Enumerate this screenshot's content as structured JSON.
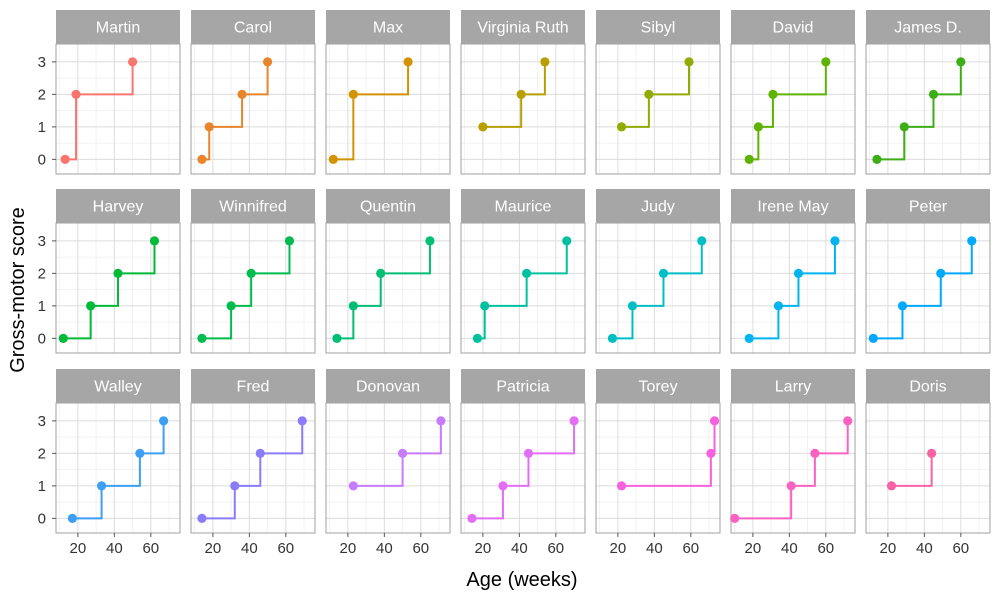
{
  "chart_data": {
    "type": "line",
    "subtype": "step-faceted",
    "xlabel": "Age (weeks)",
    "ylabel": "Gross-motor score",
    "xlim": [
      8,
      76
    ],
    "ylim": [
      -0.45,
      3.55
    ],
    "x_ticks": [
      20,
      40,
      60
    ],
    "y_ticks": [
      0,
      1,
      2,
      3
    ],
    "ncol": 7,
    "series": [
      {
        "name": "Martin",
        "color": "#f8766d",
        "points": [
          [
            13,
            0
          ],
          [
            19,
            2
          ],
          [
            50,
            3
          ]
        ]
      },
      {
        "name": "Carol",
        "color": "#e8852b",
        "points": [
          [
            14,
            0
          ],
          [
            18,
            1
          ],
          [
            36,
            2
          ],
          [
            50,
            3
          ]
        ]
      },
      {
        "name": "Max",
        "color": "#d39200",
        "points": [
          [
            12,
            0
          ],
          [
            23,
            2
          ],
          [
            53,
            3
          ]
        ]
      },
      {
        "name": "Virginia Ruth",
        "color": "#b79f00",
        "points": [
          [
            20,
            1
          ],
          [
            41,
            2
          ],
          [
            54,
            3
          ]
        ]
      },
      {
        "name": "Sibyl",
        "color": "#93aa00",
        "points": [
          [
            22,
            1
          ],
          [
            37,
            2
          ],
          [
            59,
            3
          ]
        ]
      },
      {
        "name": "David",
        "color": "#5eb300",
        "points": [
          [
            18,
            0
          ],
          [
            23,
            1
          ],
          [
            31,
            2
          ],
          [
            60,
            3
          ]
        ]
      },
      {
        "name": "James D.",
        "color": "#3dae16",
        "points": [
          [
            14,
            0
          ],
          [
            29,
            1
          ],
          [
            45,
            2
          ],
          [
            60,
            3
          ]
        ]
      },
      {
        "name": "Harvey",
        "color": "#00ba38",
        "points": [
          [
            12,
            0
          ],
          [
            27,
            1
          ],
          [
            42,
            2
          ],
          [
            62,
            3
          ]
        ]
      },
      {
        "name": "Winnifred",
        "color": "#00bb4e",
        "points": [
          [
            14,
            0
          ],
          [
            30,
            1
          ],
          [
            41,
            2
          ],
          [
            62,
            3
          ]
        ]
      },
      {
        "name": "Quentin",
        "color": "#00bf74",
        "points": [
          [
            14,
            0
          ],
          [
            23,
            1
          ],
          [
            38,
            2
          ],
          [
            65,
            3
          ]
        ]
      },
      {
        "name": "Maurice",
        "color": "#00c19f",
        "points": [
          [
            17,
            0
          ],
          [
            21,
            1
          ],
          [
            44,
            2
          ],
          [
            66,
            3
          ]
        ]
      },
      {
        "name": "Judy",
        "color": "#00bfc4",
        "points": [
          [
            17,
            0
          ],
          [
            28,
            1
          ],
          [
            45,
            2
          ],
          [
            66,
            3
          ]
        ]
      },
      {
        "name": "Irene May",
        "color": "#00b4f0",
        "points": [
          [
            18,
            0
          ],
          [
            34,
            1
          ],
          [
            45,
            2
          ],
          [
            65,
            3
          ]
        ]
      },
      {
        "name": "Peter",
        "color": "#00a9ff",
        "points": [
          [
            12,
            0
          ],
          [
            28,
            1
          ],
          [
            49,
            2
          ],
          [
            66,
            3
          ]
        ]
      },
      {
        "name": "Walley",
        "color": "#3d9ef5",
        "points": [
          [
            17,
            0
          ],
          [
            33,
            1
          ],
          [
            54,
            2
          ],
          [
            67,
            3
          ]
        ]
      },
      {
        "name": "Fred",
        "color": "#8a7cfa",
        "points": [
          [
            14,
            0
          ],
          [
            32,
            1
          ],
          [
            46,
            2
          ],
          [
            69,
            3
          ]
        ]
      },
      {
        "name": "Donovan",
        "color": "#c77cff",
        "points": [
          [
            23,
            1
          ],
          [
            50,
            2
          ],
          [
            71,
            3
          ]
        ]
      },
      {
        "name": "Patricia",
        "color": "#e36ef6",
        "points": [
          [
            14,
            0
          ],
          [
            31,
            1
          ],
          [
            45,
            2
          ],
          [
            70,
            3
          ]
        ]
      },
      {
        "name": "Torey",
        "color": "#f862dc",
        "points": [
          [
            22,
            1
          ],
          [
            71,
            2
          ],
          [
            73,
            3
          ]
        ]
      },
      {
        "name": "Larry",
        "color": "#fa62c2",
        "points": [
          [
            10,
            0
          ],
          [
            41,
            1
          ],
          [
            54,
            2
          ],
          [
            72,
            3
          ]
        ]
      },
      {
        "name": "Doris",
        "color": "#fb61a6",
        "points": [
          [
            22,
            1
          ],
          [
            44,
            2
          ]
        ]
      }
    ]
  }
}
